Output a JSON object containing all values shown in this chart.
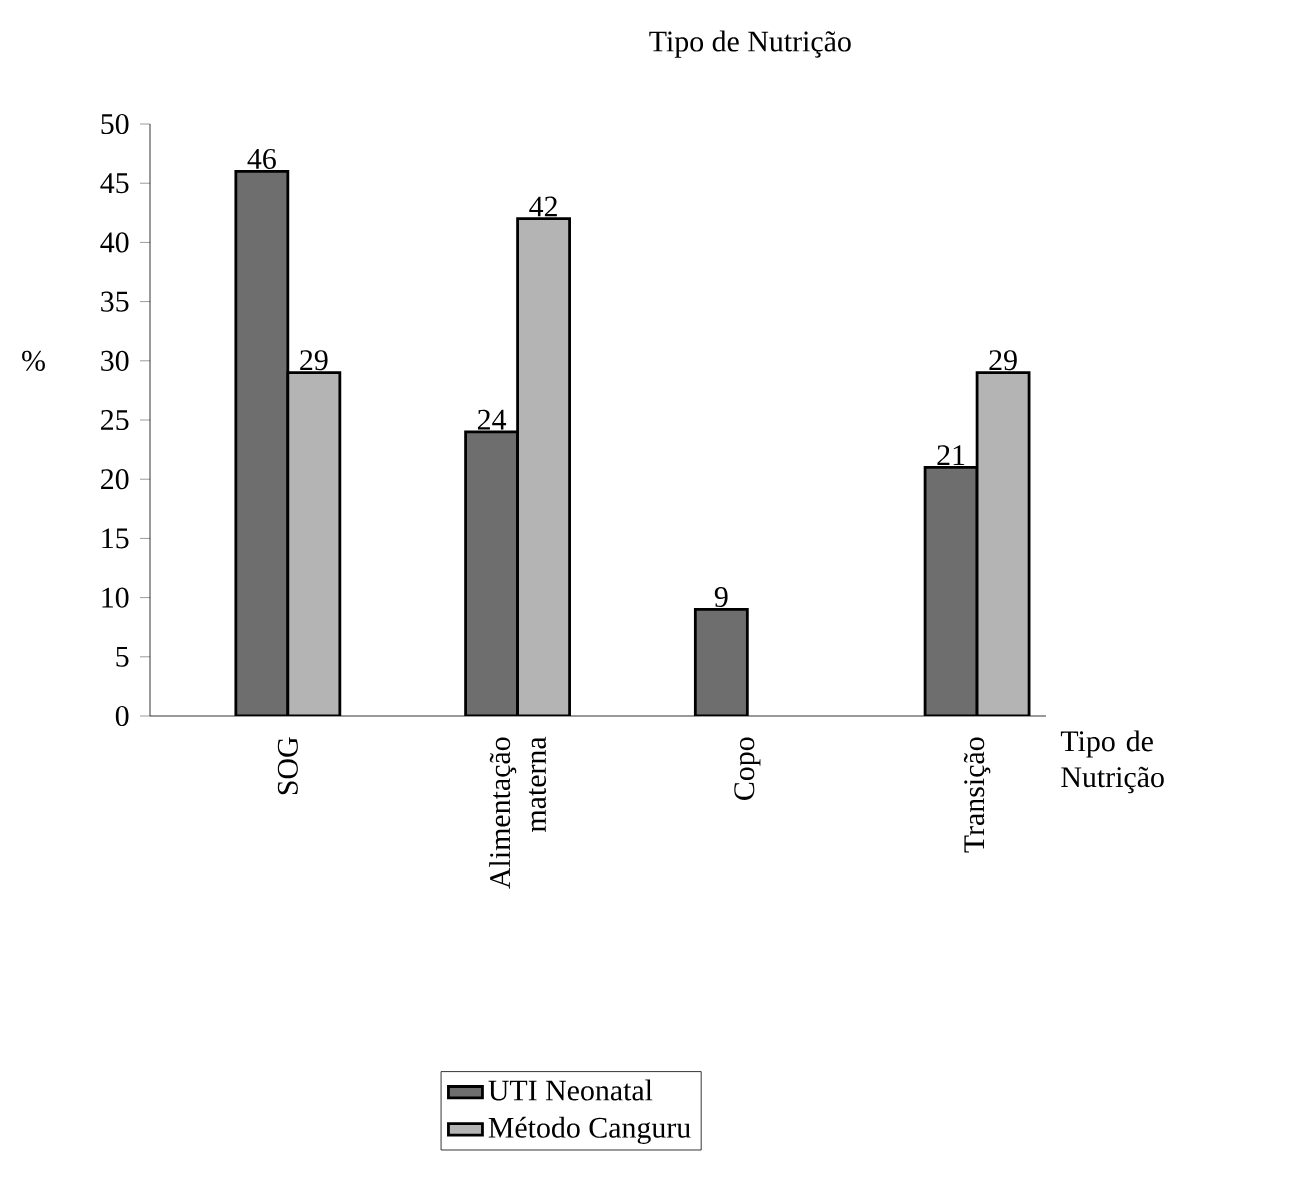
{
  "chart_data": {
    "type": "bar",
    "title": "Tipo de Nutrição",
    "xlabel": "Tipo de Nutrição",
    "ylabel": "%",
    "categories": [
      "SOG",
      "Alimentação materna",
      "Copo",
      "Transição"
    ],
    "series": [
      {
        "name": "UTI Neonatal",
        "color": "#6e6e6e",
        "values": [
          46,
          24,
          9,
          21
        ],
        "value_labels": [
          "46",
          "24",
          "9",
          "21"
        ]
      },
      {
        "name": "Método Canguru",
        "color": "#b4b4b4",
        "values": [
          29,
          42,
          null,
          29
        ],
        "value_labels": [
          "29",
          "42",
          null,
          "29"
        ]
      }
    ],
    "ylim": [
      0,
      50
    ],
    "yticks": [
      0,
      5,
      10,
      15,
      20,
      25,
      30,
      35,
      40,
      45,
      50
    ],
    "legend": "bottom",
    "grid": false
  }
}
